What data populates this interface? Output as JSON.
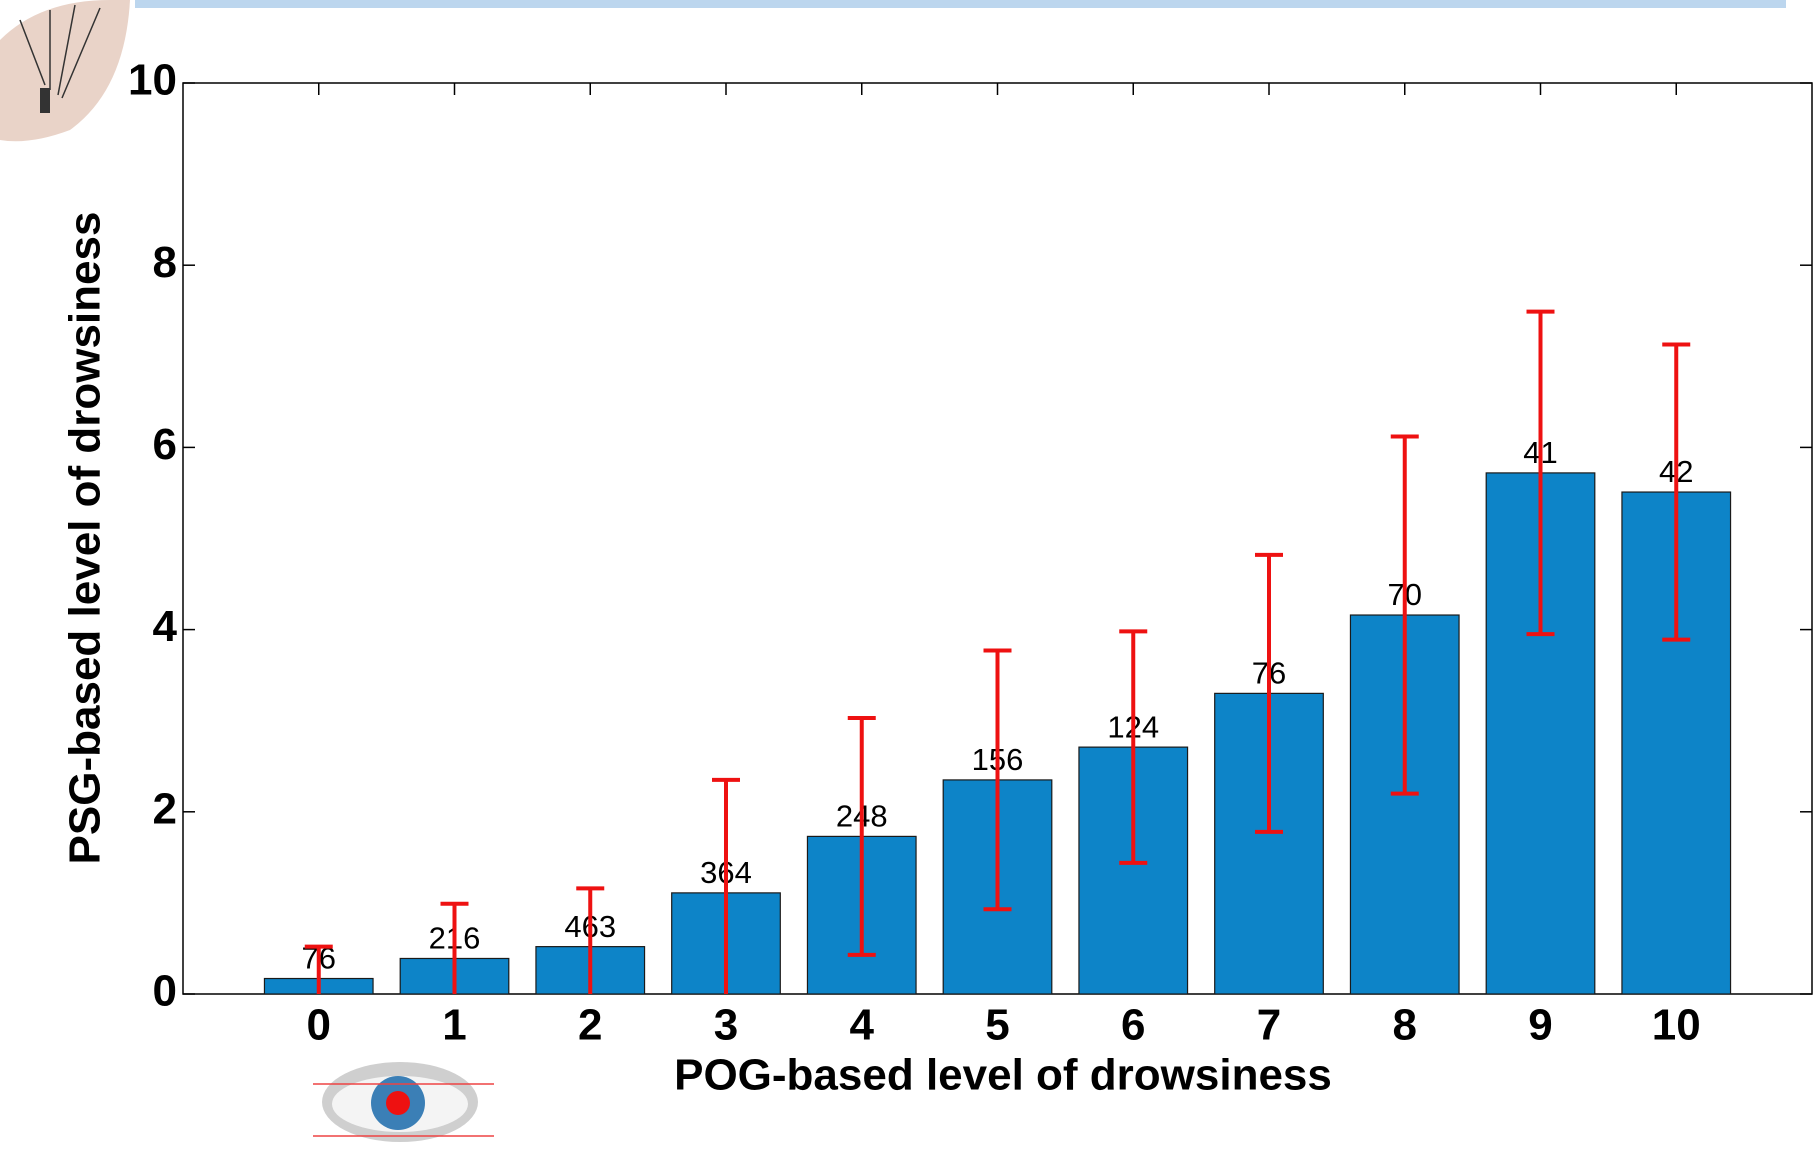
{
  "chart_data": {
    "type": "bar",
    "xlabel": "POG-based level of drowsiness",
    "ylabel": "PSG-based level of drowsiness",
    "x": [
      0,
      1,
      2,
      3,
      4,
      5,
      6,
      7,
      8,
      9,
      10
    ],
    "values": [
      0.17,
      0.39,
      0.52,
      1.11,
      1.73,
      2.35,
      2.71,
      3.3,
      4.16,
      5.72,
      5.51
    ],
    "errors": [
      0.35,
      0.6,
      0.64,
      1.24,
      1.3,
      1.42,
      1.27,
      1.52,
      1.96,
      1.77,
      1.62
    ],
    "counts": [
      76,
      216,
      463,
      364,
      248,
      156,
      124,
      76,
      70,
      41,
      42
    ],
    "color": "#0d84c8",
    "error_color": "#ee1111",
    "xlim": [
      -1,
      11
    ],
    "xticks": [
      0,
      1,
      2,
      3,
      4,
      5,
      6,
      7,
      8,
      9,
      10
    ],
    "ylim": [
      0,
      10
    ],
    "yticks": [
      0,
      2,
      4,
      6,
      8,
      10
    ]
  }
}
